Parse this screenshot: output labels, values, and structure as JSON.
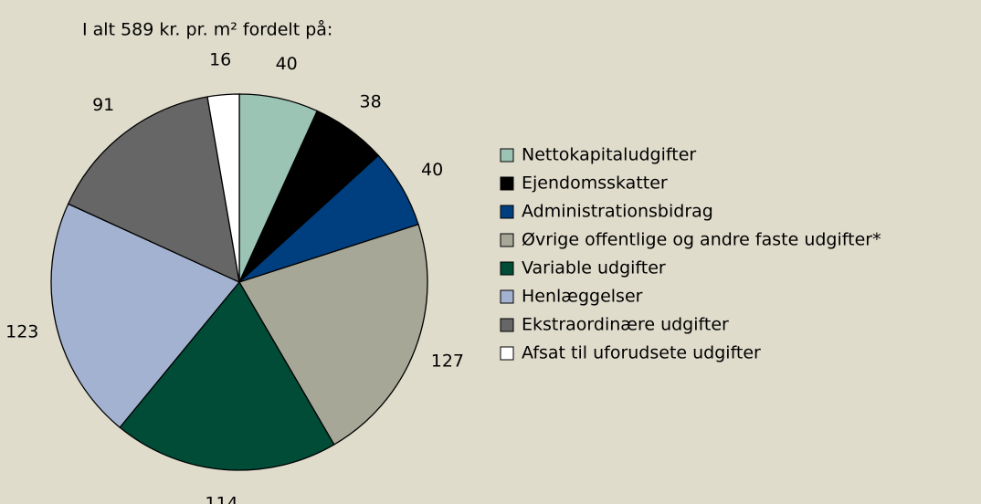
{
  "chart_data": {
    "type": "pie",
    "title": "I alt 589 kr. pr. m² fordelt på:",
    "categories": [
      "Nettokapitaludgifter",
      "Ejendomsskatter",
      "Administrationsbidrag",
      "Øvrige offentlige og andre faste udgifter*",
      "Variable udgifter",
      "Henlæggelser",
      "Ekstraordinære udgifter",
      "Afsat til uforudsete udgifter"
    ],
    "values": [
      40,
      38,
      40,
      127,
      114,
      123,
      91,
      16
    ],
    "colors": [
      "#9cc4b5",
      "#000000",
      "#003f7f",
      "#a6a797",
      "#004c36",
      "#a3b2d1",
      "#666666",
      "#ffffff"
    ],
    "legend": "right"
  }
}
